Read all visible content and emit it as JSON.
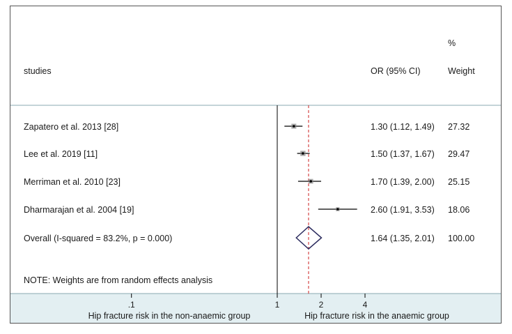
{
  "header": {
    "studies_label": "studies",
    "or_label": "OR (95% CI)",
    "weight_top": "%",
    "weight_label": "Weight"
  },
  "chart_data": {
    "type": "forest",
    "x_scale": "log",
    "xlim": [
      0.1,
      4
    ],
    "reference_line": 1,
    "overall_line": 1.64,
    "ticks": [
      {
        "value": 0.1,
        "label": ".1"
      },
      {
        "value": 1,
        "label": "1"
      },
      {
        "value": 2,
        "label": "2"
      },
      {
        "value": 4,
        "label": "4"
      }
    ],
    "studies": [
      {
        "label": "Zapatero et al. 2013 [28]",
        "or": 1.3,
        "lo": 1.12,
        "hi": 1.49,
        "or_text": "1.30 (1.12, 1.49)",
        "weight": "27.32"
      },
      {
        "label": "Lee et al. 2019 [11]",
        "or": 1.5,
        "lo": 1.37,
        "hi": 1.67,
        "or_text": "1.50 (1.37, 1.67)",
        "weight": "29.47"
      },
      {
        "label": "Merriman et al. 2010 [23]",
        "or": 1.7,
        "lo": 1.39,
        "hi": 2.0,
        "or_text": "1.70 (1.39, 2.00)",
        "weight": "25.15"
      },
      {
        "label": "Dharmarajan et al. 2004 [19]",
        "or": 2.6,
        "lo": 1.91,
        "hi": 3.53,
        "or_text": "2.60 (1.91, 3.53)",
        "weight": "18.06"
      }
    ],
    "overall": {
      "label": "Overall  (I-squared = 83.2%, p = 0.000)",
      "or": 1.64,
      "lo": 1.35,
      "hi": 2.01,
      "or_text": "1.64 (1.35, 2.01)",
      "weight": "100.00"
    },
    "note": "NOTE: Weights are from random effects analysis",
    "xlabel_left": "Hip fracture risk in the non-anaemic group",
    "xlabel_right": "Hip fracture risk in the anaemic group",
    "colors": {
      "ci": "#000000",
      "ref_line": "#000000",
      "overall_line": "#cc2222",
      "diamond": "#2b2b5e",
      "axis_band": "#e3eff2",
      "divider": "#8aa8b0"
    }
  }
}
